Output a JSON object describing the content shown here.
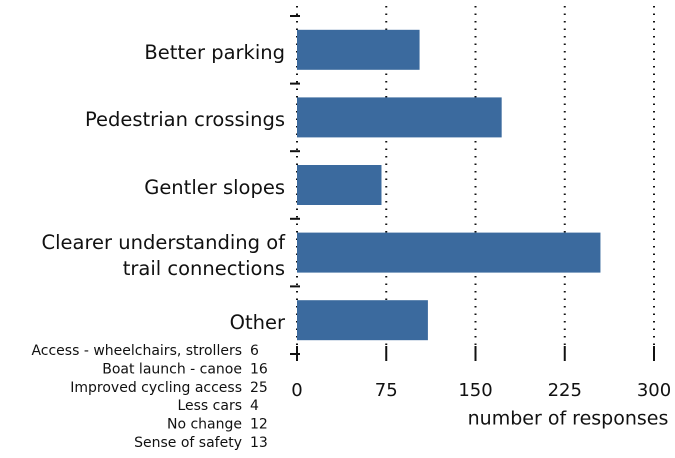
{
  "chart_data": {
    "type": "barh",
    "categories": [
      "Better parking",
      "Pedestrian crossings",
      "Gentler slopes",
      "Clearer understanding of trail connections",
      "Other"
    ],
    "values": [
      103,
      172,
      71,
      255,
      110
    ],
    "color": "#3b6a9e",
    "xlim": [
      0,
      300
    ],
    "xticks": [
      0,
      75,
      150,
      225,
      300
    ],
    "xlabel": "number of responses",
    "grid": true,
    "annotations": [
      {
        "label": "Access - wheelchairs, strollers",
        "value": 6
      },
      {
        "label": "Boat launch - canoe",
        "value": 16
      },
      {
        "label": "Improved cycling access",
        "value": 25
      },
      {
        "label": "Less cars",
        "value": 4
      },
      {
        "label": "No change",
        "value": 12
      },
      {
        "label": "Sense of safety",
        "value": 13
      }
    ]
  }
}
